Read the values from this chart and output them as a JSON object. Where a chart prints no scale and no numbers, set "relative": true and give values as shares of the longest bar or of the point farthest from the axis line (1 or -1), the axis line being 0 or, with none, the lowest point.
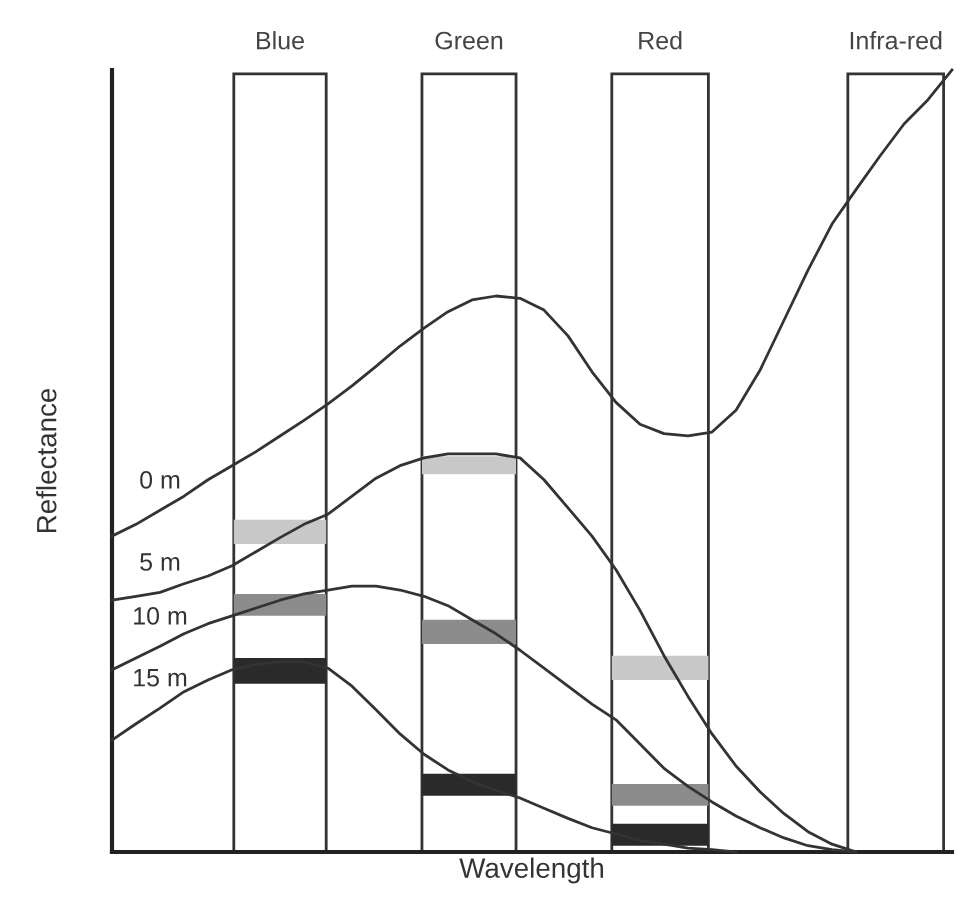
{
  "chart_data": {
    "type": "line",
    "relative": true,
    "xlabel": "Wavelength",
    "ylabel": "Reflectance",
    "tick_labels": false,
    "marker": "none",
    "line_style": "solid",
    "annotations": [
      "Blue",
      "Green",
      "Red",
      "Infra-red"
    ],
    "categories": [
      null,
      null,
      null,
      null,
      null,
      null,
      null,
      null,
      null,
      null,
      null,
      null,
      null,
      null,
      null,
      null,
      null,
      null,
      null,
      null,
      null,
      null,
      null,
      null,
      null,
      null,
      null,
      null,
      null,
      null,
      null,
      null,
      null,
      null,
      null,
      null
    ],
    "series": [
      {
        "name": "0 m",
        "color": "#333333",
        "values": [
          0.404,
          0.419,
          0.437,
          0.455,
          0.476,
          0.494,
          0.512,
          0.532,
          0.552,
          0.573,
          0.596,
          0.621,
          0.647,
          0.67,
          0.691,
          0.706,
          0.711,
          0.708,
          0.693,
          0.66,
          0.614,
          0.575,
          0.547,
          0.535,
          0.532,
          0.537,
          0.565,
          0.616,
          0.68,
          0.744,
          0.803,
          0.847,
          0.89,
          0.931,
          0.962,
          1
        ]
      },
      {
        "name": "5 m",
        "color": "#333333",
        "values": [
          0.322,
          0.327,
          0.332,
          0.343,
          0.353,
          0.366,
          0.384,
          0.402,
          0.419,
          0.432,
          0.455,
          0.478,
          0.494,
          0.504,
          0.509,
          0.509,
          0.509,
          0.504,
          0.476,
          0.44,
          0.404,
          0.361,
          0.309,
          0.251,
          0.199,
          0.151,
          0.11,
          0.077,
          0.049,
          0.026,
          0.01,
          0,
          null,
          null,
          null,
          null
        ]
      },
      {
        "name": "10 m",
        "color": "#333333",
        "values": [
          0.233,
          0.248,
          0.263,
          0.279,
          0.292,
          0.302,
          0.312,
          0.322,
          0.33,
          0.335,
          0.34,
          0.34,
          0.335,
          0.327,
          0.315,
          0.297,
          0.279,
          0.258,
          0.235,
          0.212,
          0.189,
          0.169,
          0.138,
          0.107,
          0.084,
          0.064,
          0.046,
          0.031,
          0.018,
          0.008,
          0.003,
          0,
          null,
          null,
          null,
          null
        ]
      },
      {
        "name": "15 m",
        "color": "#333333",
        "values": [
          0.143,
          0.164,
          0.184,
          0.205,
          0.22,
          0.233,
          0.24,
          0.243,
          0.243,
          0.235,
          0.212,
          0.182,
          0.151,
          0.125,
          0.105,
          0.09,
          0.079,
          0.069,
          0.056,
          0.043,
          0.031,
          0.023,
          0.015,
          0.01,
          0.005,
          0.003,
          0,
          null,
          null,
          null,
          null,
          null,
          null,
          null,
          null,
          null
        ]
      }
    ]
  }
}
